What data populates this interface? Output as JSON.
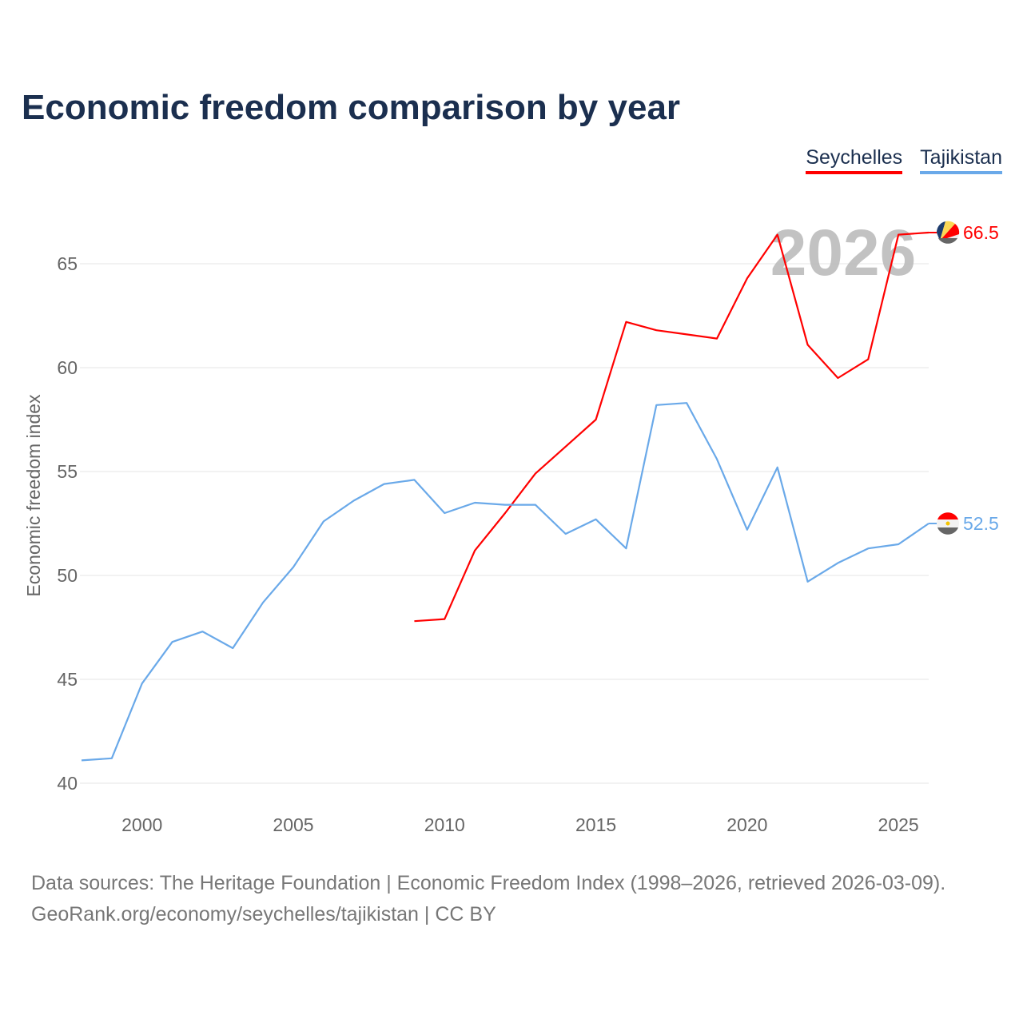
{
  "title": "Economic freedom comparison by year",
  "legend": [
    {
      "label": "Seychelles",
      "color": "#ff0000"
    },
    {
      "label": "Tajikistan",
      "color": "#6aa9e9"
    }
  ],
  "footer": {
    "line1": "Data sources: The Heritage Foundation | Economic Freedom Index (1998–2026, retrieved 2026-03-09).",
    "line2": "GeoRank.org/economy/seychelles/tajikistan | CC BY"
  },
  "chart_data": {
    "type": "line",
    "title": "Economic freedom comparison by year",
    "xlabel": "",
    "ylabel": "Economic freedom index",
    "xlim": [
      1998,
      2026
    ],
    "ylim": [
      40,
      67
    ],
    "xticks": [
      2000,
      2005,
      2010,
      2015,
      2020,
      2025
    ],
    "yticks": [
      40,
      45,
      50,
      55,
      60,
      65
    ],
    "grid": true,
    "legend_position": "top-right",
    "watermark_year": "2026",
    "series": [
      {
        "name": "Seychelles",
        "color": "#ff0000",
        "end_label": "66.5",
        "x": [
          2009,
          2010,
          2011,
          2012,
          2013,
          2014,
          2015,
          2016,
          2017,
          2018,
          2019,
          2020,
          2021,
          2022,
          2023,
          2024,
          2025,
          2026
        ],
        "y": [
          47.8,
          47.9,
          51.2,
          53.0,
          54.9,
          56.2,
          57.5,
          62.2,
          61.8,
          61.6,
          61.4,
          64.3,
          66.4,
          61.1,
          59.5,
          60.4,
          66.4,
          66.5
        ]
      },
      {
        "name": "Tajikistan",
        "color": "#6aa9e9",
        "end_label": "52.5",
        "x": [
          1998,
          1999,
          2000,
          2001,
          2002,
          2003,
          2004,
          2005,
          2006,
          2007,
          2008,
          2009,
          2010,
          2011,
          2012,
          2013,
          2014,
          2015,
          2016,
          2017,
          2018,
          2019,
          2020,
          2021,
          2022,
          2023,
          2024,
          2025,
          2026
        ],
        "y": [
          41.1,
          41.2,
          44.8,
          46.8,
          47.3,
          46.5,
          48.7,
          50.4,
          52.6,
          53.6,
          54.4,
          54.6,
          53.0,
          53.5,
          53.4,
          53.4,
          52.0,
          52.7,
          51.3,
          58.2,
          58.3,
          55.6,
          52.2,
          55.2,
          49.7,
          50.6,
          51.3,
          51.5,
          52.5
        ]
      }
    ]
  }
}
